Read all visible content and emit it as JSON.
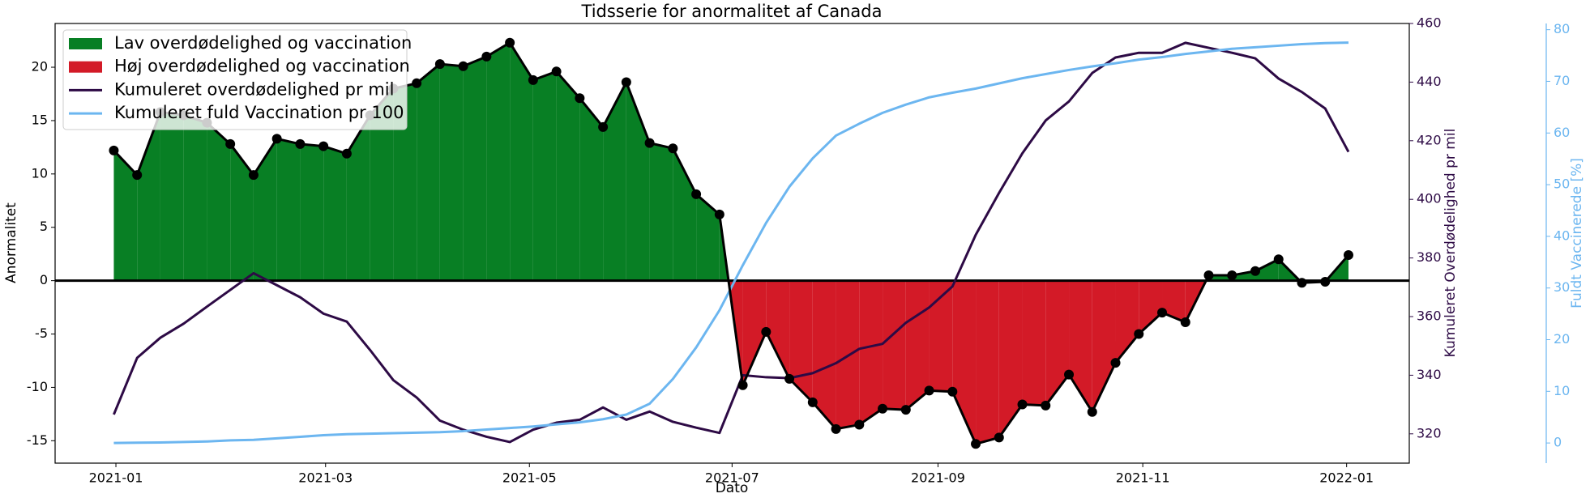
{
  "chart_data": {
    "type": "line",
    "title": "Tidsserie for anormalitet af Canada",
    "x_label": "Dato",
    "y_label": "Anormalitet",
    "y2_label": "Kumuleret Overdødelighed pr mil",
    "y3_label": "Fuldt Vaccinerede [%]",
    "categories": [
      null,
      null,
      null,
      null,
      null,
      null,
      null,
      null,
      null,
      null,
      null,
      null,
      null,
      null,
      null,
      null,
      null,
      null,
      null,
      null,
      null,
      null,
      null,
      null,
      null,
      null,
      null,
      null,
      null,
      null,
      null,
      null,
      null,
      null,
      null,
      null,
      null,
      null,
      null,
      null,
      null,
      null,
      null,
      null,
      null,
      null,
      null,
      null,
      null,
      null,
      null,
      null,
      null,
      null
    ],
    "xlim": [
      -2.52,
      55.61
    ],
    "xticks": [
      {
        "value": 0.09,
        "label": "2021-01"
      },
      {
        "value": 9.09,
        "label": "2021-03"
      },
      {
        "value": 17.84,
        "label": "2021-05"
      },
      {
        "value": 26.54,
        "label": "2021-07"
      },
      {
        "value": 35.38,
        "label": "2021-09"
      },
      {
        "value": 44.17,
        "label": "2021-11"
      },
      {
        "value": 52.92,
        "label": "2022-01"
      }
    ],
    "ylim": [
      -17.1,
      24.1
    ],
    "yticks": [
      -15,
      -10,
      -5,
      0,
      5,
      10,
      15,
      20
    ],
    "y2lim": [
      310,
      460
    ],
    "y2ticks": [
      320,
      340,
      360,
      380,
      400,
      420,
      440,
      460
    ],
    "y2color": "#2d0a45",
    "y3lim": [
      -3.9,
      81.2
    ],
    "y3ticks": [
      0,
      10,
      20,
      30,
      40,
      50,
      60,
      70,
      80
    ],
    "y3color": "#6cb6f0",
    "anomaly": {
      "color": "#000000",
      "positive_name": "Lav overdødelighed og vaccination",
      "positive_color": "#087f24",
      "negative_name": "Høj overdødelighed og vaccination",
      "negative_color": "#d31a27",
      "values": [
        12.2,
        9.9,
        15.8,
        15.5,
        14.8,
        12.8,
        9.9,
        13.3,
        12.8,
        12.6,
        11.9,
        15.5,
        18.0,
        18.5,
        20.3,
        20.1,
        21.0,
        22.3,
        18.8,
        19.6,
        17.1,
        14.4,
        18.6,
        12.9,
        12.4,
        8.1,
        6.2,
        -9.8,
        -4.8,
        -9.2,
        -11.4,
        -13.9,
        -13.5,
        -12.0,
        -12.1,
        -10.3,
        -10.4,
        -15.3,
        -14.7,
        -11.6,
        -11.7,
        -8.8,
        -12.3,
        -7.7,
        -5.0,
        -3.0,
        -3.9,
        0.5,
        0.5,
        0.9,
        2.0,
        -0.2,
        -0.1,
        2.4
      ]
    },
    "series": [
      {
        "name": "Kumuleret overdødelighed pr mil",
        "color": "#2d0a45",
        "axis": "y2",
        "values": [
          326.6,
          345.9,
          352.8,
          357.6,
          363.4,
          369.1,
          374.8,
          370.7,
          366.6,
          361.0,
          358.3,
          348.6,
          338.3,
          332.4,
          324.5,
          321.4,
          319.0,
          317.2,
          321.4,
          323.8,
          324.8,
          329.0,
          324.8,
          327.6,
          324.1,
          322.1,
          320.3,
          340.0,
          339.3,
          339.0,
          340.7,
          344.1,
          349.0,
          350.7,
          357.9,
          363.1,
          370.3,
          387.9,
          402.2,
          415.7,
          426.9,
          433.4,
          443.1,
          448.4,
          450.0,
          450.0,
          453.4,
          451.7,
          450.0,
          448.1,
          441.2,
          436.6,
          431.0,
          416.2
        ]
      },
      {
        "name": "Kumuleret fuld Vaccination pr 100",
        "color": "#6cb6f0",
        "axis": "y3",
        "values": [
          0.0,
          0.05,
          0.1,
          0.2,
          0.3,
          0.5,
          0.6,
          0.9,
          1.2,
          1.5,
          1.7,
          1.8,
          1.9,
          2.0,
          2.1,
          2.3,
          2.6,
          2.9,
          3.2,
          3.6,
          4.0,
          4.6,
          5.5,
          7.6,
          12.4,
          18.5,
          25.7,
          34.4,
          42.6,
          49.6,
          55.1,
          59.5,
          61.8,
          63.9,
          65.5,
          66.9,
          67.8,
          68.6,
          69.6,
          70.6,
          71.4,
          72.2,
          72.9,
          73.5,
          74.2,
          74.7,
          75.3,
          75.8,
          76.3,
          76.6,
          76.9,
          77.2,
          77.4,
          77.5
        ]
      }
    ]
  }
}
